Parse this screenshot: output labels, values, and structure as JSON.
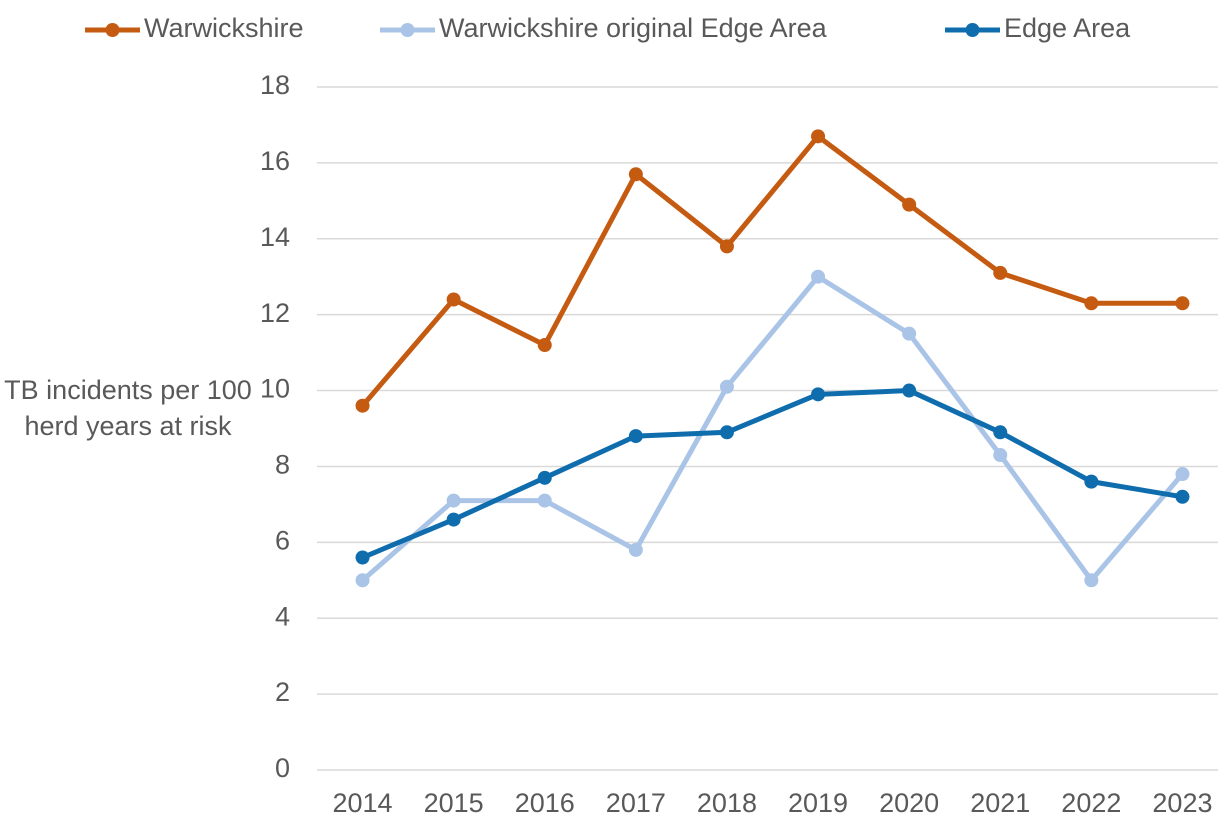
{
  "chart_data": {
    "type": "line",
    "y_label": "TB incidents per 100 herd years at risk",
    "categories": [
      "2014",
      "2015",
      "2016",
      "2017",
      "2018",
      "2019",
      "2020",
      "2021",
      "2022",
      "2023"
    ],
    "series": [
      {
        "name": "Warwickshire",
        "color": "#C55A11",
        "values": [
          9.6,
          12.4,
          11.2,
          15.7,
          13.8,
          16.7,
          14.9,
          13.1,
          12.3,
          12.3
        ]
      },
      {
        "name": "Warwickshire original Edge Area",
        "color": "#A9C4E6",
        "values": [
          5.0,
          7.1,
          7.1,
          5.8,
          10.1,
          13.0,
          11.5,
          8.3,
          5.0,
          7.8
        ]
      },
      {
        "name": "Edge Area",
        "color": "#0F6DAE",
        "values": [
          5.6,
          6.6,
          7.7,
          8.8,
          8.9,
          9.9,
          10.0,
          8.9,
          7.6,
          7.2
        ]
      }
    ],
    "ylim": [
      0,
      18
    ],
    "yticks": [
      0,
      2,
      4,
      6,
      8,
      10,
      12,
      14,
      16,
      18
    ],
    "grid": true,
    "legend": "top"
  }
}
